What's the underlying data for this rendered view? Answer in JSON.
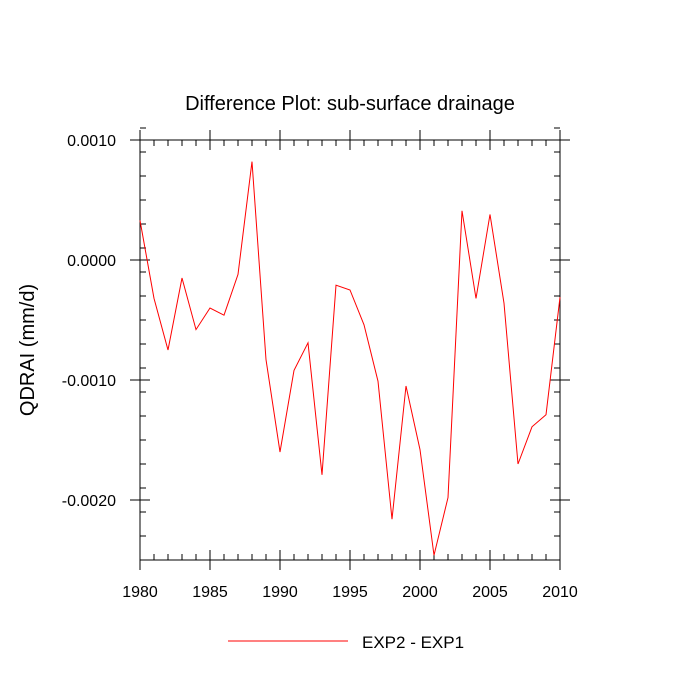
{
  "chart_data": {
    "type": "line",
    "title": "Difference Plot: sub-surface drainage",
    "xlabel": "",
    "ylabel": "QDRAI  (mm/d)",
    "xlim": [
      1980,
      2010
    ],
    "ylim": [
      -0.0025,
      0.001
    ],
    "x_ticks": [
      1980,
      1985,
      1990,
      1995,
      2000,
      2005,
      2010
    ],
    "x_tick_labels": [
      "1980",
      "1985",
      "1990",
      "1995",
      "2000",
      "2005",
      "2010"
    ],
    "y_ticks": [
      0.001,
      0.0,
      -0.001,
      -0.002
    ],
    "y_tick_labels": [
      "0.0010",
      "0.0000",
      "-0.0010",
      "-0.0020"
    ],
    "grid": false,
    "legend_position": "bottom-center",
    "series": [
      {
        "name": "EXP2 - EXP1",
        "color": "#ff0000",
        "x": [
          1980,
          1981,
          1982,
          1983,
          1984,
          1985,
          1986,
          1987,
          1988,
          1989,
          1990,
          1991,
          1992,
          1993,
          1994,
          1995,
          1996,
          1997,
          1998,
          1999,
          2000,
          2001,
          2002,
          2003,
          2004,
          2005,
          2006,
          2007,
          2008,
          2009,
          2010
        ],
        "y": [
          0.00033,
          -0.00032,
          -0.00075,
          -0.00015,
          -0.00058,
          -0.0004,
          -0.00046,
          -0.00012,
          0.00082,
          -0.00083,
          -0.0016,
          -0.00092,
          -0.00069,
          -0.00179,
          -0.00021,
          -0.00025,
          -0.00054,
          -0.00101,
          -0.00216,
          -0.00105,
          -0.00158,
          -0.00246,
          -0.00198,
          0.00041,
          -0.00032,
          0.00038,
          -0.00036,
          -0.0017,
          -0.00139,
          -0.00129,
          -0.00031
        ]
      }
    ]
  }
}
